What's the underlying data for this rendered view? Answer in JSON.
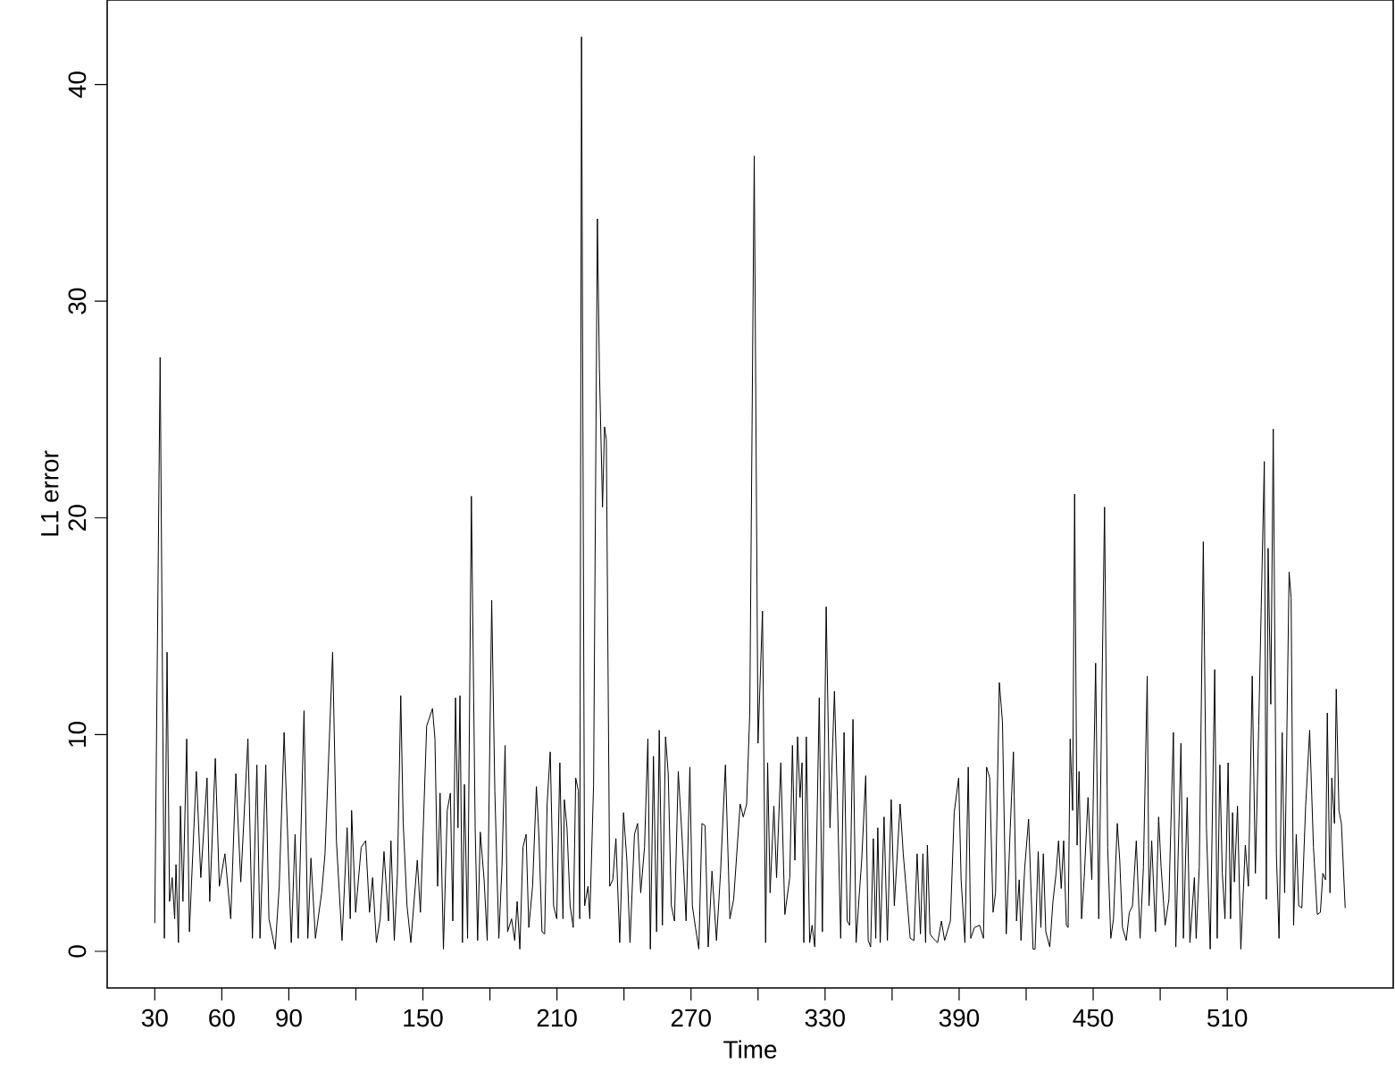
{
  "chart_data": {
    "type": "line",
    "xlabel": "Time",
    "ylabel": "L1 error",
    "xlim": [
      8.7,
      584.3
    ],
    "ylim": [
      -1.69,
      43.9
    ],
    "xticks": [
      30,
      60,
      90,
      {
        "value": 120,
        "label": null
      },
      150,
      {
        "value": 180,
        "label": null
      },
      210,
      {
        "value": 240,
        "label": null
      },
      270,
      {
        "value": 300,
        "label": null
      },
      330,
      {
        "value": 360,
        "label": null
      },
      390,
      {
        "value": 420,
        "label": null
      },
      450,
      {
        "value": 480,
        "label": null
      },
      510
    ],
    "yticks": [
      0,
      10,
      20,
      30,
      40
    ],
    "series": [
      {
        "color": "#000000",
        "x": [
          30,
          32.4,
          34.3,
          35.5,
          36.6,
          37.8,
          38.9,
          39.5,
          40.6,
          41.5,
          42.6,
          44.3,
          45.5,
          48.6,
          50.6,
          53.4,
          54.6,
          57.1,
          58.9,
          61.4,
          64,
          66.3,
          68.5,
          71.7,
          73.7,
          75.7,
          77.1,
          79.7,
          81.1,
          83.9,
          85.7,
          87.9,
          91.1,
          92.8,
          94.2,
          96.8,
          98.5,
          99.9,
          101.9,
          104.7,
          106.2,
          109.6,
          111.3,
          113.8,
          116.1,
          117.5,
          118.1,
          119.9,
          122.4,
          124.4,
          126.1,
          127.5,
          129.2,
          130.9,
          132.6,
          134.6,
          135.7,
          137.2,
          138.6,
          140.1,
          141.2,
          142.9,
          144.6,
          147.5,
          148.9,
          151.7,
          154.3,
          155.4,
          156.6,
          157.7,
          159.2,
          160.9,
          162.3,
          163.4,
          164.6,
          165.7,
          166.6,
          167.7,
          168.6,
          170,
          171.7,
          173.4,
          174.5,
          175.7,
          177.4,
          178.8,
          180.8,
          182.2,
          184,
          185.4,
          186.8,
          187.9,
          189.7,
          191.1,
          192.2,
          193.4,
          194.8,
          196.2,
          197.4,
          199.1,
          200.8,
          201.9,
          203.3,
          204.5,
          205.6,
          207,
          208.5,
          209.9,
          211.3,
          212.7,
          213.3,
          214.5,
          215.9,
          217.3,
          218.4,
          219.6,
          220.2,
          221,
          222.4,
          223.9,
          224.7,
          226.4,
          228.1,
          229,
          230.4,
          231.3,
          232.1,
          233.6,
          235,
          236.4,
          238.1,
          239.8,
          241.3,
          242.7,
          244.7,
          246.1,
          247.5,
          249.2,
          250.7,
          251.8,
          253.2,
          254.6,
          255.8,
          257.2,
          258.6,
          259.8,
          261.2,
          262.6,
          264.3,
          266.1,
          267.8,
          269.5,
          270.6,
          272,
          273.5,
          274.9,
          276.3,
          277.7,
          279.4,
          281.4,
          283.2,
          285.4,
          287.4,
          289.1,
          292,
          293.4,
          294.9,
          296.3,
          298.3,
          300,
          302,
          303.4,
          304.3,
          305.4,
          307.1,
          308.3,
          310.2,
          312,
          314.2,
          315.4,
          316.5,
          317.7,
          318.8,
          319.7,
          320.5,
          321.6,
          323.1,
          324.2,
          325.4,
          327.4,
          328.8,
          330.5,
          332.2,
          334.2,
          335.6,
          337,
          338.5,
          339.9,
          341,
          342.5,
          343.9,
          345.3,
          346.4,
          348.2,
          349.3,
          350.4,
          351.6,
          352.7,
          353.6,
          354.7,
          356.4,
          357.9,
          359.6,
          361,
          363.6,
          365,
          366.7,
          368.1,
          369.8,
          371.2,
          372.7,
          373.8,
          375,
          375.8,
          377,
          378.4,
          380.4,
          382.1,
          383.5,
          386.1,
          387.8,
          389.8,
          390.9,
          392.6,
          394.1,
          395.2,
          396.9,
          399.2,
          400.9,
          402.3,
          403.7,
          405.2,
          406.3,
          408,
          409.4,
          411.1,
          412.9,
          414.3,
          415.7,
          416.9,
          417.7,
          419.4,
          421.1,
          423.1,
          424,
          425.4,
          426.6,
          427.7,
          428.8,
          430.6,
          432,
          433.4,
          434.5,
          435.7,
          436.8,
          438,
          438.8,
          439.7,
          440.8,
          441.7,
          442.8,
          443.7,
          444.8,
          446,
          447.7,
          449.4,
          451.1,
          452.5,
          455.1,
          456.5,
          457.9,
          459.1,
          460.8,
          461.9,
          463.1,
          464.8,
          466.2,
          467.6,
          469.3,
          471,
          472.5,
          474.2,
          475,
          476.2,
          477.9,
          479.3,
          480.4,
          482.2,
          483.9,
          485.9,
          487,
          489.3,
          490.4,
          492.1,
          493.3,
          495.3,
          496.1,
          497.5,
          499.3,
          500.7,
          502.4,
          504.4,
          505.5,
          506.7,
          507.8,
          509,
          510.4,
          511.5,
          512.4,
          513.2,
          514.6,
          516.1,
          518.1,
          519.5,
          521.2,
          522.6,
          524.1,
          526.6,
          527.5,
          528.3,
          529.5,
          530.6,
          532,
          533.2,
          534.6,
          535.7,
          537.7,
          538.6,
          539.7,
          540.9,
          542,
          543.4,
          545.1,
          546.9,
          548.6,
          550.3,
          551.7,
          552.8,
          554,
          554.8,
          556,
          556.8,
          558,
          558.8,
          560,
          561.1,
          562.8
        ],
        "values": [
          1.3,
          27.4,
          0.6,
          13.8,
          2.3,
          3.4,
          1.5,
          4.0,
          0.4,
          6.7,
          2.3,
          9.8,
          0.9,
          8.3,
          3.4,
          8.0,
          2.3,
          8.9,
          3.0,
          4.5,
          1.5,
          8.2,
          3.2,
          9.8,
          0.6,
          8.6,
          0.6,
          8.6,
          1.5,
          0.1,
          3.0,
          10.1,
          0.4,
          5.4,
          0.6,
          11.1,
          0.6,
          4.3,
          0.6,
          2.7,
          4.5,
          13.8,
          5.1,
          0.5,
          5.7,
          1.5,
          6.5,
          1.8,
          4.8,
          5.1,
          1.8,
          3.4,
          0.4,
          1.5,
          4.6,
          1.4,
          5.1,
          0.5,
          3.6,
          11.8,
          5.9,
          2.1,
          0.4,
          4.2,
          1.8,
          10.4,
          11.2,
          9.8,
          3.0,
          7.3,
          0.1,
          6.5,
          7.3,
          1.4,
          11.7,
          5.7,
          11.8,
          0.4,
          7.7,
          0.6,
          21.0,
          5.7,
          0.5,
          5.5,
          3.3,
          0.5,
          16.2,
          7.4,
          0.6,
          3.9,
          9.5,
          0.9,
          1.5,
          0.5,
          2.3,
          0.1,
          4.8,
          5.4,
          1.1,
          3.0,
          7.6,
          5.4,
          0.9,
          0.8,
          6.8,
          9.2,
          2.1,
          1.5,
          8.7,
          1.5,
          7.0,
          5.7,
          2.1,
          1.1,
          8.0,
          7.4,
          1.5,
          42.2,
          2.1,
          3.0,
          1.5,
          7.7,
          33.8,
          26.9,
          20.5,
          24.2,
          23.6,
          3.0,
          3.3,
          5.2,
          0.4,
          6.4,
          4.2,
          0.4,
          5.4,
          5.9,
          2.7,
          4.8,
          9.8,
          0.1,
          9.0,
          0.9,
          10.2,
          1.2,
          9.9,
          8.2,
          2.1,
          1.4,
          8.3,
          5.1,
          1.4,
          8.5,
          2.1,
          1.1,
          0.1,
          5.9,
          5.8,
          0.2,
          3.7,
          0.5,
          3.6,
          8.6,
          1.5,
          2.4,
          6.8,
          6.2,
          6.8,
          11.0,
          36.7,
          9.6,
          15.7,
          0.4,
          8.7,
          2.7,
          6.7,
          3.4,
          8.7,
          1.7,
          3.4,
          9.5,
          4.2,
          9.9,
          7.1,
          8.7,
          0.4,
          9.9,
          0.4,
          1.2,
          0.2,
          11.7,
          0.9,
          15.9,
          5.7,
          12.0,
          6.8,
          0.6,
          10.1,
          1.4,
          1.2,
          10.7,
          0.4,
          2.6,
          4.2,
          8.1,
          0.5,
          0.2,
          5.2,
          0.6,
          5.7,
          0.4,
          6.2,
          0.5,
          7.0,
          2.1,
          6.8,
          4.5,
          2.4,
          0.6,
          0.5,
          4.5,
          0.8,
          4.5,
          0.4,
          4.9,
          0.8,
          0.6,
          0.4,
          1.4,
          0.5,
          1.4,
          6.4,
          8.0,
          3.3,
          0.4,
          8.5,
          0.6,
          1.1,
          1.2,
          0.6,
          8.5,
          8.0,
          1.8,
          2.7,
          12.4,
          10.6,
          0.8,
          5.7,
          9.2,
          1.4,
          3.3,
          0.5,
          3.9,
          6.1,
          0.1,
          0.1,
          4.6,
          1.1,
          4.5,
          0.9,
          0.2,
          2.3,
          3.6,
          5.1,
          2.9,
          5.1,
          1.2,
          1.1,
          9.8,
          6.5,
          21.1,
          4.9,
          8.3,
          1.5,
          3.4,
          7.1,
          3.3,
          13.3,
          1.5,
          20.5,
          4.8,
          0.6,
          1.5,
          5.9,
          4.2,
          1.1,
          0.5,
          1.8,
          2.1,
          5.1,
          0.6,
          3.9,
          12.7,
          2.1,
          5.1,
          0.9,
          6.2,
          3.9,
          1.2,
          2.4,
          10.1,
          0.2,
          9.6,
          0.6,
          7.1,
          0.4,
          3.4,
          0.6,
          3.9,
          18.9,
          5.7,
          0.1,
          13.0,
          0.6,
          8.6,
          3.6,
          1.5,
          8.7,
          1.5,
          6.4,
          3.2,
          6.7,
          0.1,
          4.9,
          3.0,
          12.7,
          3.6,
          10.4,
          22.6,
          2.4,
          18.6,
          11.4,
          24.1,
          4.5,
          0.6,
          10.1,
          2.7,
          17.5,
          16.3,
          1.2,
          5.4,
          2.1,
          2.0,
          6.7,
          10.2,
          4.8,
          1.7,
          1.8,
          3.6,
          3.3,
          11.0,
          2.7,
          8.0,
          5.9,
          12.1,
          6.5,
          5.9,
          2.0
        ]
      }
    ]
  }
}
